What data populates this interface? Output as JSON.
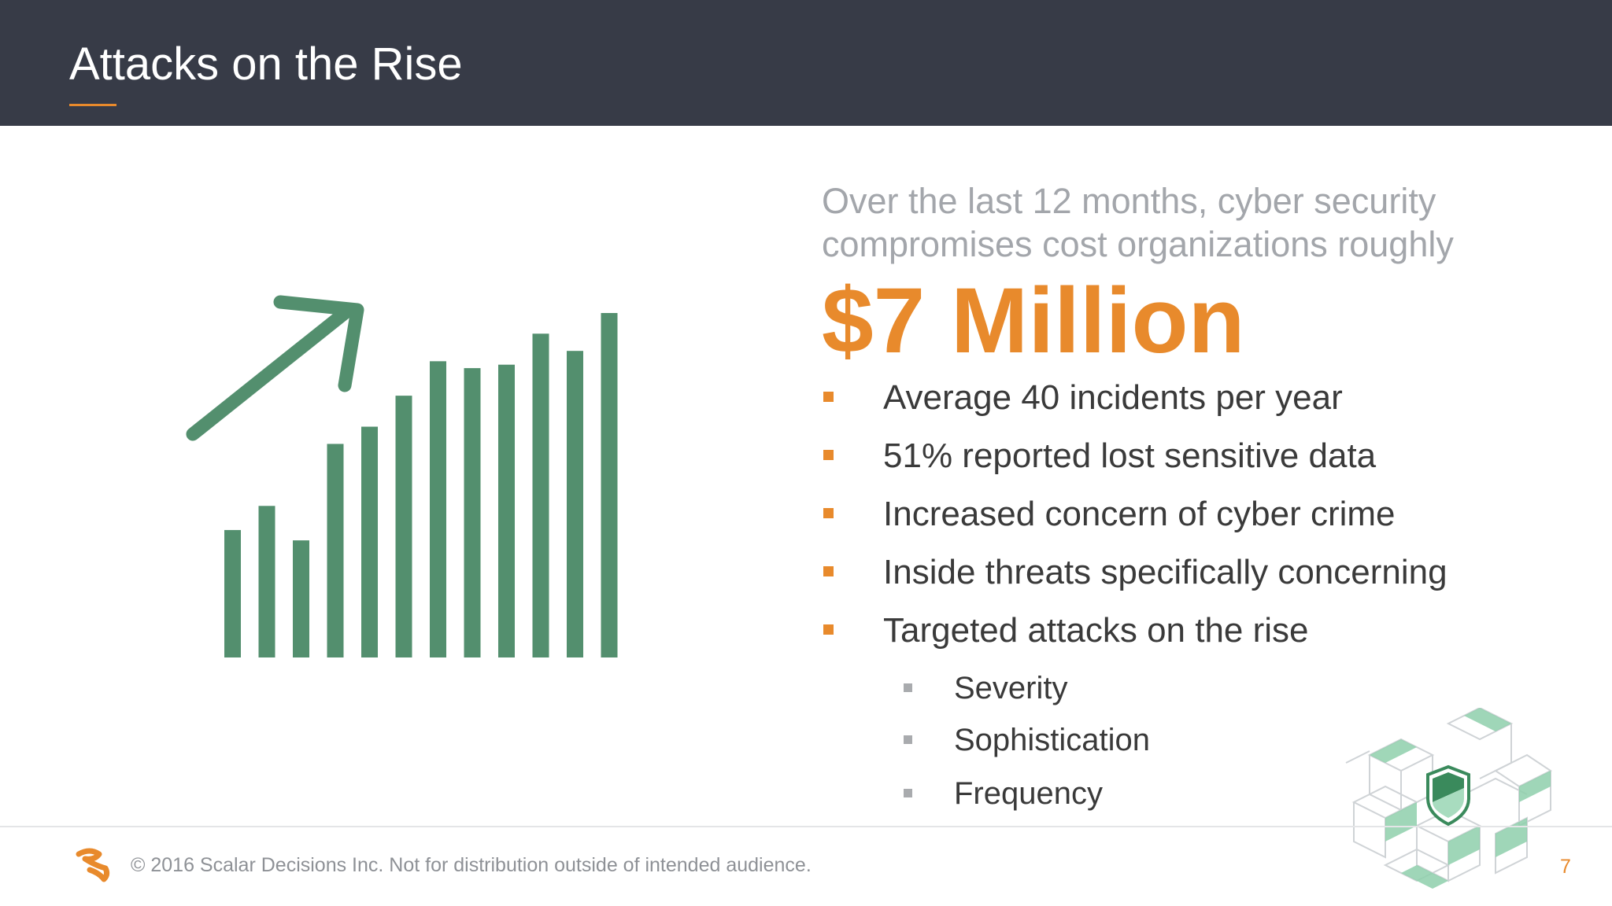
{
  "slide": {
    "title": "Attacks on the Rise",
    "intro_line1": "Over the last 12 months, cyber security",
    "intro_line2": "compromises cost organizations roughly",
    "highlight": "$7 Million",
    "bullets": [
      "Average 40 incidents per year",
      "51% reported lost sensitive data",
      "Increased concern of cyber crime",
      "Inside threats specifically concerning",
      "Targeted attacks on the rise"
    ],
    "sub_bullets": [
      "Severity",
      "Sophistication",
      "Frequency"
    ]
  },
  "graphic": {
    "icon": "rising-bar-chart-icon",
    "bar_levels": [
      0.37,
      0.44,
      0.34,
      0.62,
      0.67,
      0.76,
      0.86,
      0.84,
      0.85,
      0.94,
      0.89,
      1.0
    ],
    "color": "#538f6e"
  },
  "footer": {
    "copyright": "© 2016 Scalar Decisions Inc. Not for distribution outside of intended audience.",
    "page_number": "7",
    "logo_icon": "scalar-logo-icon",
    "decoration_icon": "isometric-cube-shield-icon"
  },
  "colors": {
    "header_bg": "#373b47",
    "accent": "#e88a2c",
    "green": "#538f6e",
    "muted_text": "#a3a6ab"
  }
}
